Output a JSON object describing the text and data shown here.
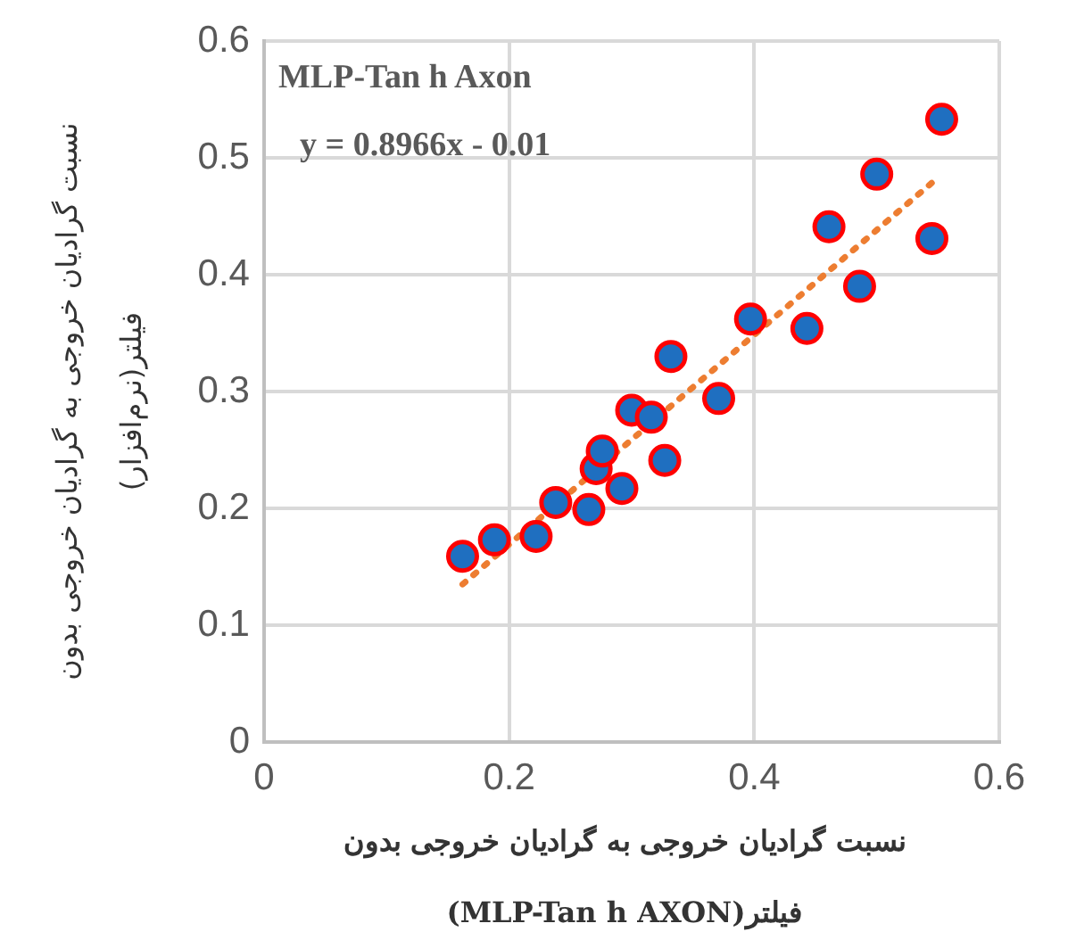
{
  "chart_data": {
    "type": "scatter",
    "xlabel": "نسبت گرادیان خروجی به گرادیان خروجی بدون فیلتر(MLP-Tan h AXON)",
    "ylabel": "نسبت گرادیان خروجی به گرادیان خروجی بدون فیلتر(نرم‌افزار)",
    "annotations": [
      "MLP-Tan h Axon",
      "y = 0.8966x - 0.01"
    ],
    "xlim": [
      0,
      0.6
    ],
    "xticks": [
      0,
      0.2,
      0.4,
      0.6
    ],
    "ylim": [
      0,
      0.6
    ],
    "yticks": [
      0,
      0.1,
      0.2,
      0.3,
      0.4,
      0.5,
      0.6
    ],
    "grid": true,
    "legend": false,
    "series": [
      {
        "type": "scatter",
        "color": "#1f6fc0",
        "marker": "circle",
        "x": [
          0.162,
          0.188,
          0.222,
          0.238,
          0.265,
          0.271,
          0.276,
          0.292,
          0.3,
          0.316,
          0.327,
          0.332,
          0.371,
          0.397,
          0.443,
          0.461,
          0.486,
          0.5,
          0.545,
          0.553
        ],
        "values": [
          0.159,
          0.173,
          0.176,
          0.205,
          0.199,
          0.234,
          0.249,
          0.217,
          0.284,
          0.278,
          0.241,
          0.33,
          0.294,
          0.362,
          0.354,
          0.441,
          0.39,
          0.486,
          0.431,
          0.533
        ]
      },
      {
        "type": "line",
        "color": "#ed7d31",
        "marker": "none",
        "line_style": "dotted",
        "x": [
          0.162,
          0.551
        ],
        "values": [
          0.135,
          0.484
        ]
      }
    ]
  }
}
